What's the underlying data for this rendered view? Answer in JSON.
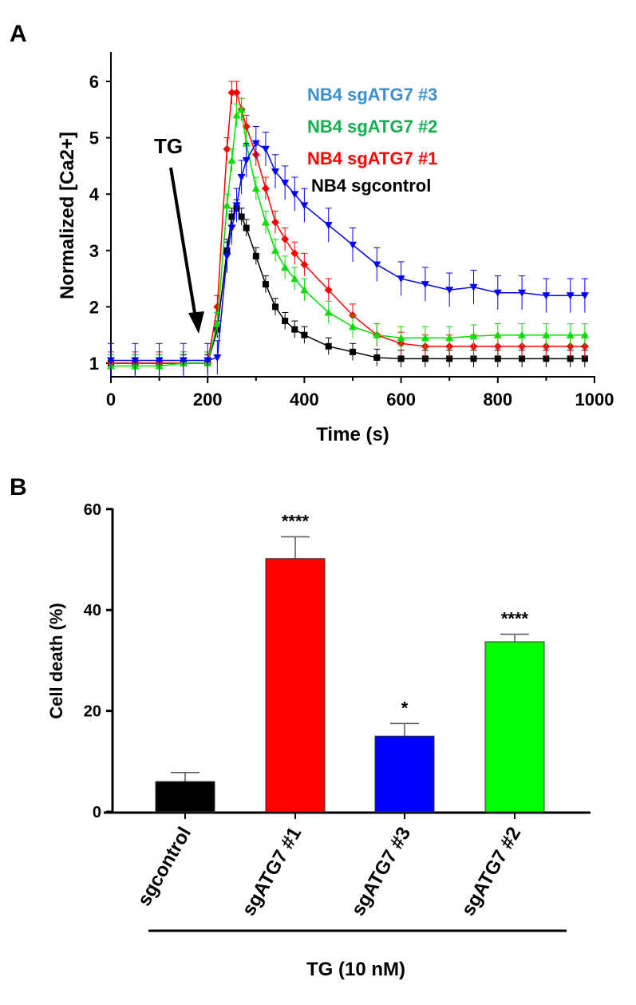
{
  "chart_data": [
    {
      "panel": "A",
      "type": "line",
      "xlabel": "Time (s)",
      "ylabel": "Normalized [Ca2+]",
      "xlim": [
        0,
        1000
      ],
      "ylim": [
        0.8,
        6.5
      ],
      "xticks": [
        "0",
        "200",
        "400",
        "600",
        "800",
        "1000"
      ],
      "yticks": [
        "1",
        "2",
        "3",
        "4",
        "5",
        "6"
      ],
      "annotation": "TG",
      "x": [
        0,
        50,
        100,
        150,
        200,
        220,
        240,
        250,
        260,
        270,
        280,
        300,
        320,
        340,
        360,
        380,
        400,
        450,
        500,
        550,
        600,
        650,
        700,
        750,
        800,
        850,
        900,
        950,
        980
      ],
      "series": [
        {
          "name": "NB4  sgATG7 #3",
          "legend_color": "#3b8fd0",
          "color": "#0000ff",
          "marker": "triangle-down",
          "err": 0.3,
          "values": [
            1.05,
            1.05,
            1.05,
            1.05,
            1.05,
            1.1,
            2.9,
            3.4,
            3.8,
            4.3,
            4.6,
            4.9,
            4.8,
            4.4,
            4.2,
            4.0,
            3.8,
            3.45,
            3.1,
            2.75,
            2.5,
            2.4,
            2.3,
            2.35,
            2.25,
            2.25,
            2.2,
            2.2,
            2.2
          ]
        },
        {
          "name": "NB4  sgATG7 #2",
          "legend_color": "#11b04f",
          "color": "#00e000",
          "marker": "triangle-up",
          "err": 0.2,
          "values": [
            0.95,
            0.95,
            0.95,
            1.0,
            1.0,
            1.7,
            3.8,
            4.6,
            5.4,
            5.5,
            4.9,
            4.1,
            3.5,
            3.0,
            2.7,
            2.5,
            2.3,
            1.9,
            1.65,
            1.5,
            1.45,
            1.45,
            1.45,
            1.48,
            1.5,
            1.5,
            1.5,
            1.5,
            1.5
          ]
        },
        {
          "name": "NB4  sgATG7 #1",
          "legend_color": "#ff0000",
          "color": "#ff0000",
          "marker": "diamond",
          "err": 0.2,
          "values": [
            1.0,
            1.0,
            1.0,
            1.0,
            1.0,
            2.0,
            4.8,
            5.8,
            5.8,
            5.5,
            5.2,
            4.7,
            4.1,
            3.5,
            3.2,
            2.95,
            2.75,
            2.3,
            1.85,
            1.5,
            1.35,
            1.3,
            1.3,
            1.3,
            1.3,
            1.3,
            1.3,
            1.3,
            1.3
          ]
        },
        {
          "name": "NB4  sgcontrol",
          "legend_color": "#000000",
          "color": "#000000",
          "marker": "square",
          "err": 0.15,
          "values": [
            1.0,
            1.0,
            1.0,
            1.0,
            1.0,
            1.6,
            3.0,
            3.6,
            3.75,
            3.6,
            3.4,
            2.9,
            2.4,
            2.0,
            1.75,
            1.6,
            1.5,
            1.3,
            1.2,
            1.1,
            1.08,
            1.08,
            1.08,
            1.08,
            1.08,
            1.08,
            1.08,
            1.08,
            1.08
          ]
        }
      ]
    },
    {
      "panel": "B",
      "type": "bar",
      "ylabel": "Cell death (%)",
      "ylim": [
        0,
        60
      ],
      "yticks": [
        "0",
        "20",
        "40",
        "60"
      ],
      "group_label": "TG (10 nM)",
      "categories": [
        "sgcontrol",
        "sgATG7 #1",
        "sgATG7 #3",
        "sgATG7 #2"
      ],
      "values": [
        6,
        50.2,
        15,
        33.7
      ],
      "errors": [
        1.8,
        4.3,
        2.5,
        1.5
      ],
      "colors": [
        "#000000",
        "#ff0000",
        "#0000ff",
        "#00ff00"
      ],
      "significance": [
        "",
        "****",
        "*",
        "****"
      ]
    }
  ],
  "labels": {
    "panel_a": "A",
    "panel_b": "B"
  }
}
